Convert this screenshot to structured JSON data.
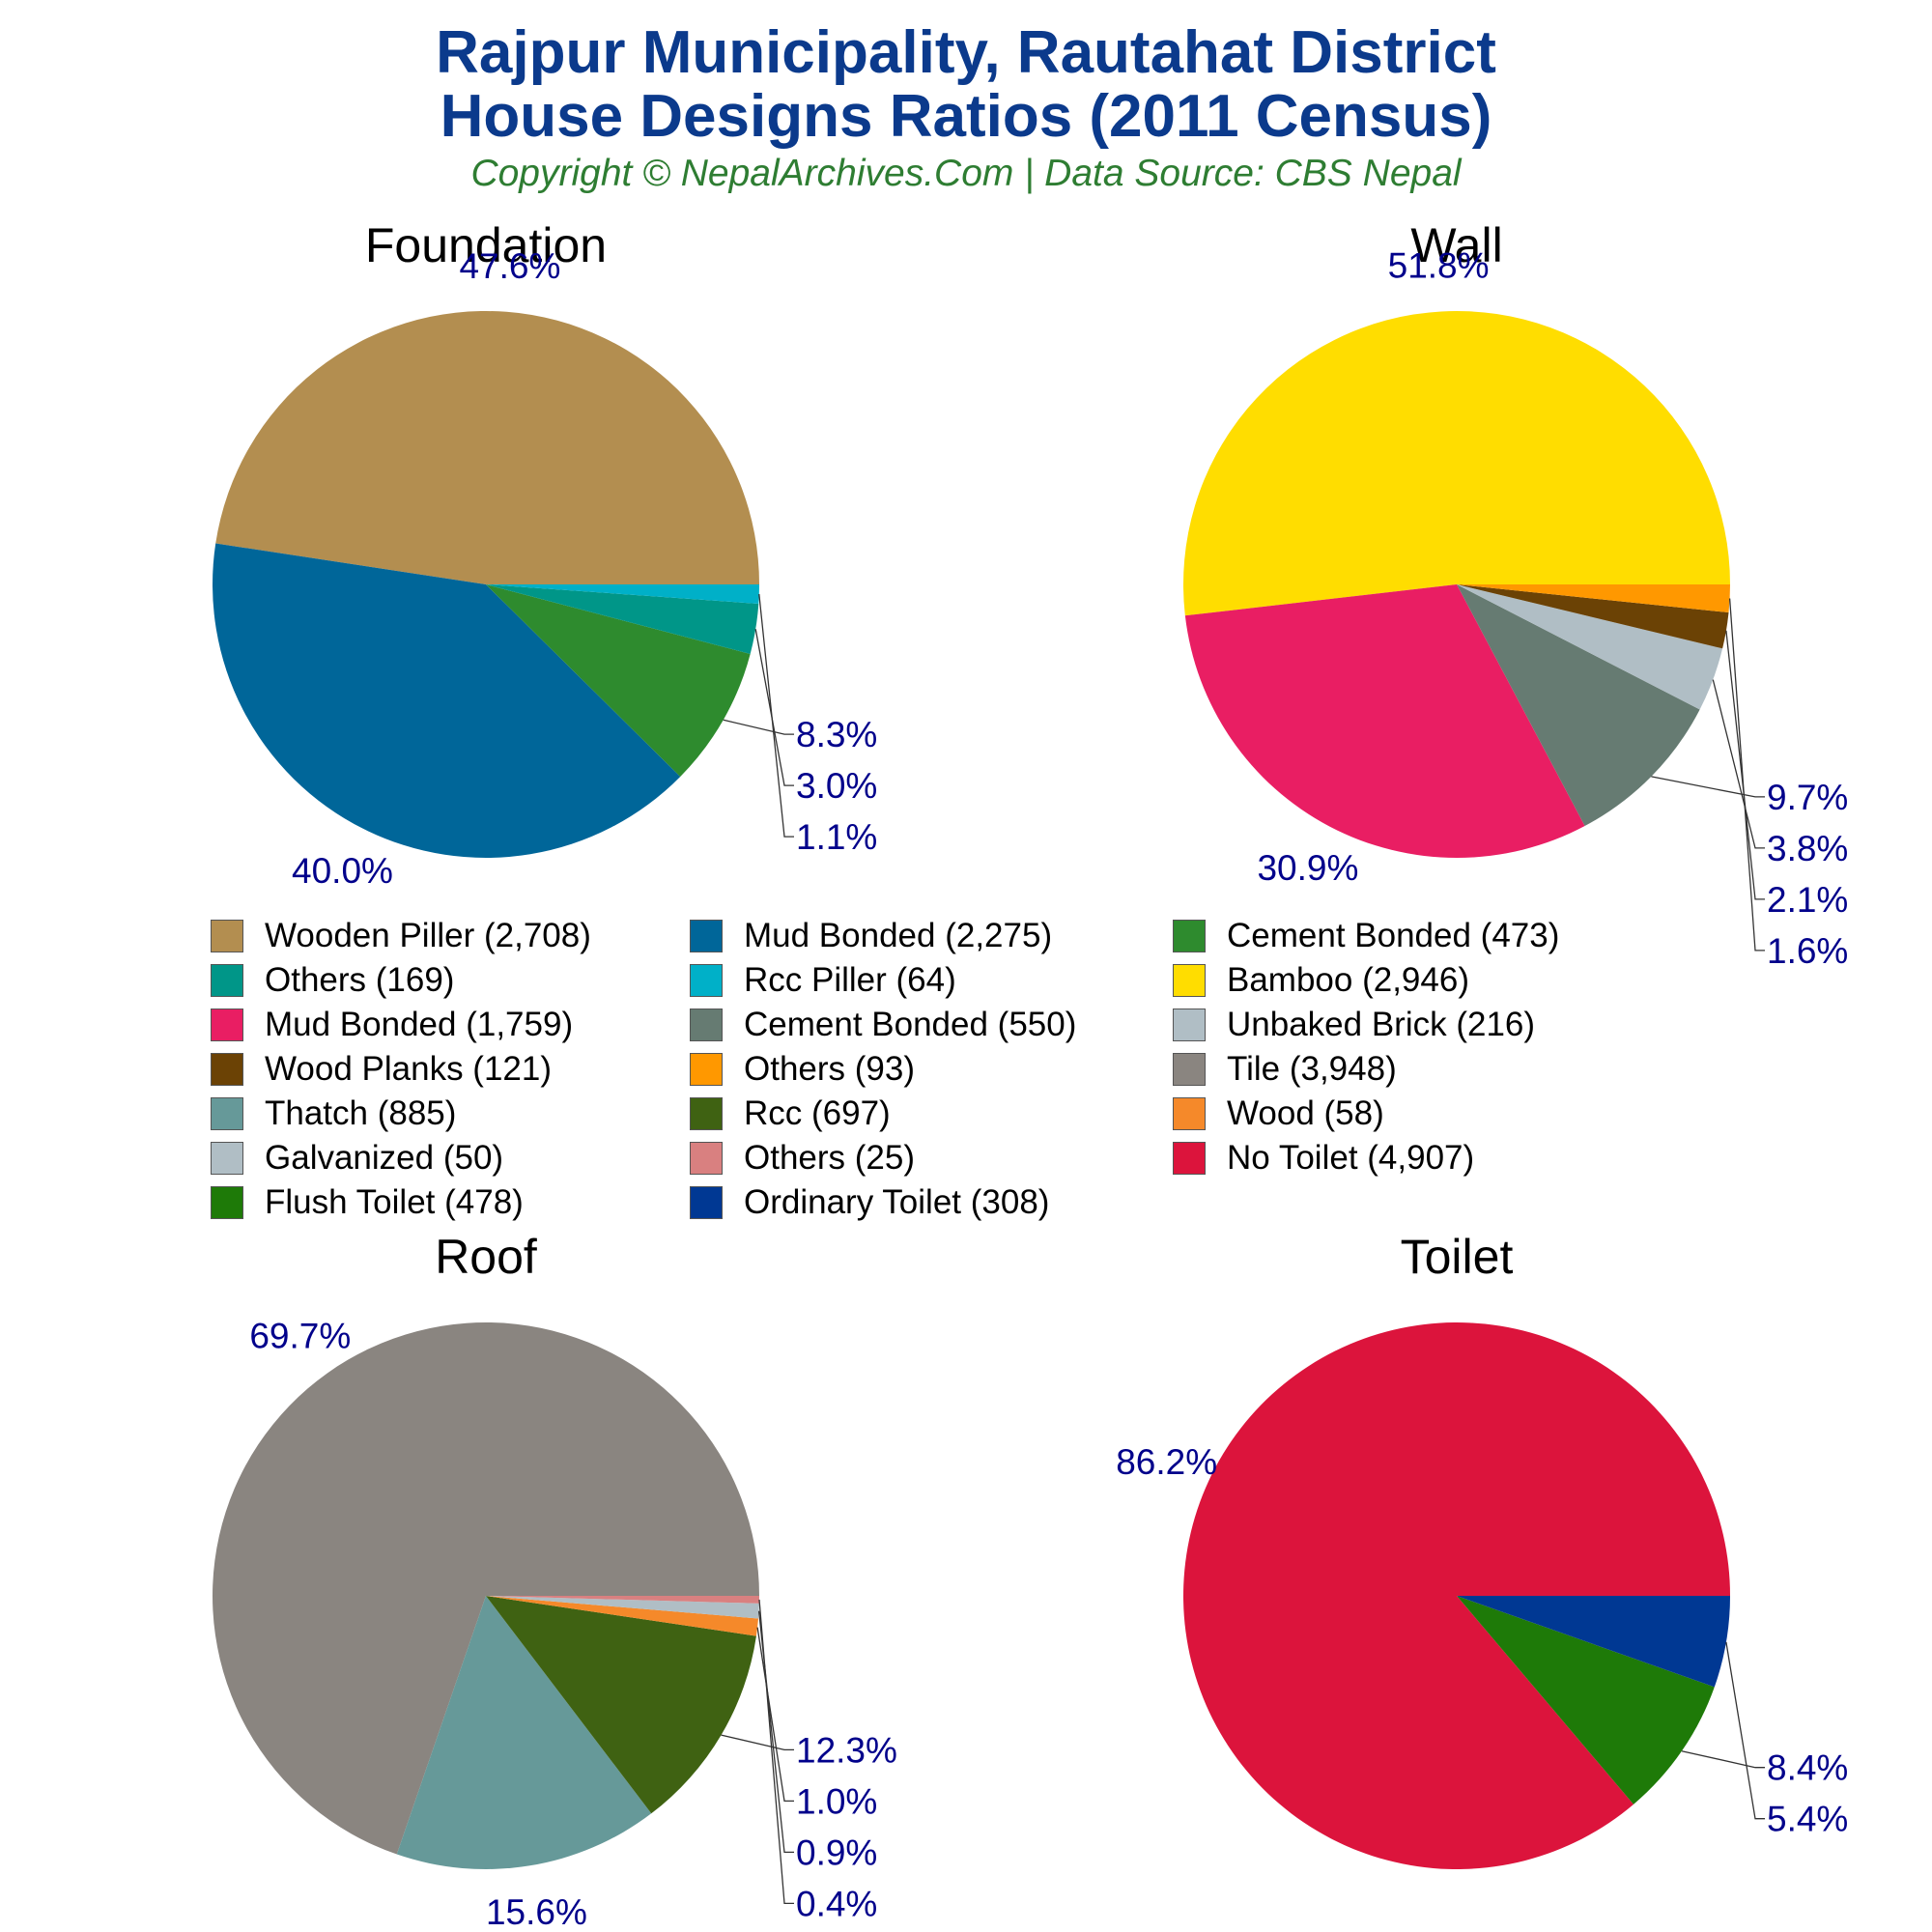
{
  "header": {
    "title_line1": "Rajpur Municipality, Rautahat District",
    "title_line2": "House Designs Ratios (2011 Census)",
    "subtitle": "Copyright © NepalArchives.Com | Data Source: CBS Nepal"
  },
  "chart_data": [
    {
      "type": "pie",
      "title": "Foundation",
      "slices": [
        {
          "label": "Wooden Piller",
          "value": 2708,
          "pct_label": "47.6%",
          "color": "#b38e50"
        },
        {
          "label": "Mud Bonded",
          "value": 2275,
          "pct_label": "40.0%",
          "color": "#006699"
        },
        {
          "label": "Cement Bonded",
          "value": 473,
          "pct_label": "8.3%",
          "color": "#2e8b2e"
        },
        {
          "label": "Others",
          "value": 169,
          "pct_label": "3.0%",
          "color": "#009688"
        },
        {
          "label": "Rcc Piller",
          "value": 64,
          "pct_label": "1.1%",
          "color": "#00b0c8"
        }
      ]
    },
    {
      "type": "pie",
      "title": "Wall",
      "slices": [
        {
          "label": "Bamboo",
          "value": 2946,
          "pct_label": "51.8%",
          "color": "#ffdd00"
        },
        {
          "label": "Mud Bonded",
          "value": 1759,
          "pct_label": "30.9%",
          "color": "#e91e63"
        },
        {
          "label": "Cement Bonded",
          "value": 550,
          "pct_label": "9.7%",
          "color": "#667b72"
        },
        {
          "label": "Unbaked Brick",
          "value": 216,
          "pct_label": "3.8%",
          "color": "#b0bec5"
        },
        {
          "label": "Wood Planks",
          "value": 121,
          "pct_label": "2.1%",
          "color": "#6b4205"
        },
        {
          "label": "Others",
          "value": 93,
          "pct_label": "1.6%",
          "color": "#ff9800"
        }
      ]
    },
    {
      "type": "pie",
      "title": "Roof",
      "slices": [
        {
          "label": "Tile",
          "value": 3948,
          "pct_label": "69.7%",
          "color": "#8a8580"
        },
        {
          "label": "Thatch",
          "value": 885,
          "pct_label": "15.6%",
          "color": "#669999"
        },
        {
          "label": "Rcc",
          "value": 697,
          "pct_label": "12.3%",
          "color": "#3f6212"
        },
        {
          "label": "Wood",
          "value": 58,
          "pct_label": "1.0%",
          "color": "#f5892a"
        },
        {
          "label": "Galvanized",
          "value": 50,
          "pct_label": "0.9%",
          "color": "#b0bec5"
        },
        {
          "label": "Others",
          "value": 25,
          "pct_label": "0.4%",
          "color": "#d98080"
        }
      ]
    },
    {
      "type": "pie",
      "title": "Toilet",
      "slices": [
        {
          "label": "No Toilet",
          "value": 4907,
          "pct_label": "86.2%",
          "color": "#dc143c"
        },
        {
          "label": "Flush Toilet",
          "value": 478,
          "pct_label": "8.4%",
          "color": "#1e7a08"
        },
        {
          "label": "Ordinary Toilet",
          "value": 308,
          "pct_label": "5.4%",
          "color": "#003893"
        }
      ]
    }
  ],
  "legend": [
    {
      "label": "Wooden Piller (2,708)",
      "color": "#b38e50"
    },
    {
      "label": "Mud Bonded (2,275)",
      "color": "#006699"
    },
    {
      "label": "Cement Bonded (473)",
      "color": "#2e8b2e"
    },
    {
      "label": "Others (169)",
      "color": "#009688"
    },
    {
      "label": "Rcc Piller (64)",
      "color": "#00b0c8"
    },
    {
      "label": "Bamboo (2,946)",
      "color": "#ffdd00"
    },
    {
      "label": "Mud Bonded (1,759)",
      "color": "#e91e63"
    },
    {
      "label": "Cement Bonded (550)",
      "color": "#667b72"
    },
    {
      "label": "Unbaked Brick (216)",
      "color": "#b0bec5"
    },
    {
      "label": "Wood Planks (121)",
      "color": "#6b4205"
    },
    {
      "label": "Others (93)",
      "color": "#ff9800"
    },
    {
      "label": "Tile (3,948)",
      "color": "#8a8580"
    },
    {
      "label": "Thatch (885)",
      "color": "#669999"
    },
    {
      "label": "Rcc (697)",
      "color": "#3f6212"
    },
    {
      "label": "Wood (58)",
      "color": "#f5892a"
    },
    {
      "label": "Galvanized (50)",
      "color": "#b0bec5"
    },
    {
      "label": "Others (25)",
      "color": "#d98080"
    },
    {
      "label": "No Toilet (4,907)",
      "color": "#dc143c"
    },
    {
      "label": "Flush Toilet (478)",
      "color": "#1e7a08"
    },
    {
      "label": "Ordinary Toilet (308)",
      "color": "#003893"
    }
  ],
  "colors": {
    "title": "#0b3a8c",
    "subtitle": "#2e7d32",
    "pct_label": "#00008b",
    "leader_line": "#333333"
  }
}
